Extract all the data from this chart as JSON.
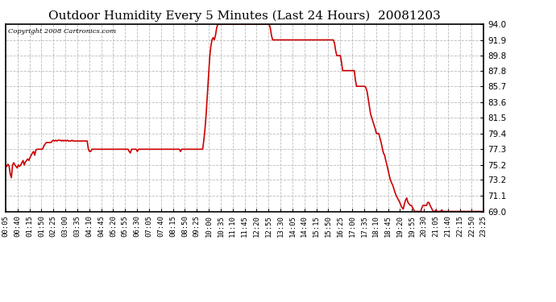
{
  "title": "Outdoor Humidity Every 5 Minutes (Last 24 Hours)  20081203",
  "copyright": "Copyright 2008 Cartronics.com",
  "line_color": "#cc0000",
  "background_color": "#ffffff",
  "grid_color": "#bbbbbb",
  "ylim": [
    69.0,
    94.0
  ],
  "yticks": [
    69.0,
    71.1,
    73.2,
    75.2,
    77.3,
    79.4,
    81.5,
    83.6,
    85.7,
    87.8,
    89.8,
    91.9,
    94.0
  ],
  "x_labels": [
    "00:05",
    "00:40",
    "01:15",
    "01:50",
    "02:25",
    "03:00",
    "03:35",
    "04:10",
    "04:45",
    "05:20",
    "05:55",
    "06:30",
    "07:05",
    "07:40",
    "08:15",
    "08:50",
    "09:25",
    "10:00",
    "10:35",
    "11:10",
    "11:45",
    "12:20",
    "12:55",
    "13:30",
    "14:05",
    "14:40",
    "15:15",
    "15:50",
    "16:25",
    "17:00",
    "17:35",
    "18:10",
    "18:45",
    "19:20",
    "19:55",
    "20:30",
    "21:05",
    "21:40",
    "22:15",
    "22:50",
    "23:25"
  ],
  "humidity_data": [
    75.2,
    75.0,
    75.3,
    75.1,
    74.0,
    73.5,
    75.2,
    75.5,
    75.2,
    75.0,
    74.8,
    75.2,
    75.0,
    75.2,
    75.5,
    75.8,
    75.2,
    75.6,
    75.8,
    76.0,
    75.8,
    76.2,
    76.5,
    76.8,
    77.0,
    76.5,
    77.2,
    77.3,
    77.3,
    77.3,
    77.3,
    77.3,
    77.4,
    77.8,
    78.0,
    78.2,
    78.2,
    78.2,
    78.2,
    78.2,
    78.4,
    78.5,
    78.4,
    78.5,
    78.4,
    78.5,
    78.5,
    78.5,
    78.4,
    78.5,
    78.4,
    78.5,
    78.4,
    78.5,
    78.4,
    78.4,
    78.4,
    78.5,
    78.4,
    78.4,
    78.4,
    78.4,
    78.4,
    78.4,
    78.4,
    78.4,
    78.4,
    78.4,
    78.4,
    78.4,
    78.4,
    77.3,
    77.0,
    77.0,
    77.3,
    77.3,
    77.3,
    77.3,
    77.3,
    77.3,
    77.3,
    77.3,
    77.3,
    77.3,
    77.3,
    77.3,
    77.3,
    77.3,
    77.3,
    77.3,
    77.3,
    77.3,
    77.3,
    77.3,
    77.3,
    77.3,
    77.3,
    77.3,
    77.3,
    77.3,
    77.3,
    77.3,
    77.3,
    77.3,
    77.3,
    77.3,
    77.0,
    76.8,
    77.3,
    77.3,
    77.3,
    77.3,
    77.3,
    77.0,
    77.3,
    77.3,
    77.3,
    77.3,
    77.3,
    77.3,
    77.3,
    77.3,
    77.3,
    77.3,
    77.3,
    77.3,
    77.3,
    77.3,
    77.3,
    77.3,
    77.3,
    77.3,
    77.3,
    77.3,
    77.3,
    77.3,
    77.3,
    77.3,
    77.3,
    77.3,
    77.3,
    77.3,
    77.3,
    77.3,
    77.3,
    77.3,
    77.3,
    77.3,
    77.3,
    77.3,
    77.0,
    77.3,
    77.3,
    77.3,
    77.3,
    77.3,
    77.3,
    77.3,
    77.3,
    77.3,
    77.3,
    77.3,
    77.3,
    77.3,
    77.3,
    77.3,
    77.3,
    77.3,
    77.3,
    77.3,
    78.5,
    80.0,
    82.0,
    84.5,
    87.0,
    89.5,
    91.0,
    91.9,
    92.2,
    91.9,
    92.5,
    93.5,
    94.0,
    94.0,
    94.0,
    94.0,
    94.0,
    94.0,
    94.0,
    94.0,
    94.0,
    94.0,
    94.0,
    94.0,
    94.0,
    94.0,
    94.0,
    94.0,
    94.0,
    94.0,
    94.0,
    94.0,
    94.0,
    94.0,
    94.0,
    94.0,
    94.0,
    94.0,
    94.0,
    94.0,
    94.0,
    94.0,
    94.0,
    94.0,
    94.0,
    94.0,
    94.0,
    94.0,
    94.0,
    94.0,
    94.0,
    94.0,
    94.0,
    94.0,
    94.0,
    94.0,
    94.0,
    93.5,
    92.5,
    91.9,
    91.9,
    91.9,
    91.9,
    91.9,
    91.9,
    91.9,
    91.9,
    91.9,
    91.9,
    91.9,
    91.9,
    91.9,
    91.9,
    91.9,
    91.9,
    91.9,
    91.9,
    91.9,
    91.9,
    91.9,
    91.9,
    91.9,
    91.9,
    91.9,
    91.9,
    91.9,
    91.9,
    91.9,
    91.9,
    91.9,
    91.9,
    91.9,
    91.9,
    91.9,
    91.9,
    91.9,
    91.9,
    91.9,
    91.9,
    91.9,
    91.9,
    91.9,
    91.9,
    91.9,
    91.9,
    91.9,
    91.9,
    91.9,
    91.9,
    91.9,
    91.9,
    91.9,
    91.5,
    90.5,
    89.8,
    89.8,
    89.8,
    89.8,
    89.0,
    87.8,
    87.8,
    87.8,
    87.8,
    87.8,
    87.8,
    87.8,
    87.8,
    87.8,
    87.8,
    87.8,
    86.5,
    85.7,
    85.7,
    85.7,
    85.7,
    85.7,
    85.7,
    85.7,
    85.7,
    85.5,
    85.0,
    84.0,
    83.0,
    82.0,
    81.5,
    81.0,
    80.5,
    80.0,
    79.4,
    79.4,
    79.4,
    78.8,
    78.2,
    77.5,
    76.8,
    76.5,
    75.8,
    75.2,
    74.5,
    73.8,
    73.2,
    72.8,
    72.5,
    72.0,
    71.5,
    71.1,
    70.8,
    70.5,
    70.2,
    69.8,
    69.5,
    69.3,
    70.0,
    70.5,
    70.8,
    70.2,
    70.0,
    69.8,
    69.8,
    69.5,
    69.2,
    69.0,
    69.0,
    69.0,
    69.0,
    69.0,
    69.0,
    69.5,
    69.8,
    69.8,
    69.8,
    69.8,
    70.2,
    70.2,
    69.8,
    69.5,
    69.2,
    69.0,
    69.0,
    69.2,
    69.0,
    69.0,
    69.0,
    69.0,
    69.2,
    69.0,
    69.0,
    69.0,
    69.0,
    69.0,
    69.0,
    69.0,
    69.0,
    69.0,
    69.0,
    69.0,
    69.0,
    69.0,
    69.0,
    69.0,
    69.0,
    69.0,
    69.0,
    69.0,
    69.0,
    69.0,
    69.0,
    69.0,
    69.0,
    69.0,
    69.0,
    69.0,
    69.0,
    69.0,
    69.0,
    69.0,
    69.0,
    69.0,
    69.0,
    69.0,
    69.0
  ]
}
